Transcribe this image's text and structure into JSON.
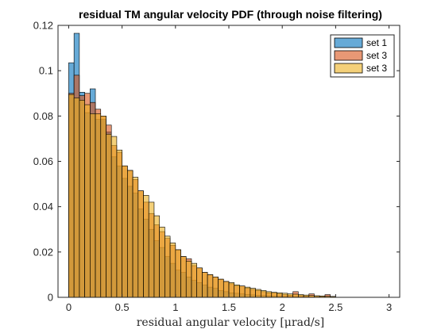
{
  "chart_data": {
    "type": "bar",
    "title": "residual TM angular velocity PDF (through noise filtering)",
    "xlabel": "residual angular velocity [μrad/s]",
    "ylabel": "",
    "xlim": [
      -0.1,
      3.1
    ],
    "ylim": [
      0,
      0.12
    ],
    "xticks": [
      0,
      0.5,
      1,
      1.5,
      2,
      2.5,
      3
    ],
    "xtick_labels": [
      "0",
      "0.5",
      "1",
      "1.5",
      "2",
      "2.5",
      "3"
    ],
    "yticks": [
      0,
      0.02,
      0.04,
      0.06,
      0.08,
      0.1,
      0.12
    ],
    "ytick_labels": [
      "0",
      "0.02",
      "0.04",
      "0.06",
      "0.08",
      "0.1",
      "0.12"
    ],
    "bin_start": 0,
    "bin_width": 0.05,
    "grid": false,
    "legend_position": "top-right",
    "series": [
      {
        "name": "set 1",
        "color": "#0072bd",
        "values": [
          0.1035,
          0.1165,
          0.0905,
          0.0815,
          0.092,
          0.0785,
          0.0785,
          0.073,
          0.062,
          0.058,
          0.0525,
          0.049,
          0.046,
          0.039,
          0.0345,
          0.03,
          0.025,
          0.022,
          0.018,
          0.015,
          0.012,
          0.011,
          0.009,
          0.0075,
          0.0065,
          0.0055,
          0.0045,
          0.004,
          0.003,
          0.0025,
          0.002,
          0.0018,
          0.0015,
          0.0013,
          0.0011,
          0.0009,
          0.0008,
          0.0007,
          0.0006,
          0.0005,
          0.0004,
          0.0004,
          0.0003,
          0.0003,
          0.0002,
          0.0002,
          0.0001,
          0.0001,
          0.0001,
          0.0001
        ]
      },
      {
        "name": "set 3",
        "color": "#d95319",
        "values": [
          0.09,
          0.098,
          0.089,
          0.09,
          0.086,
          0.083,
          0.08,
          0.076,
          0.067,
          0.064,
          0.058,
          0.056,
          0.052,
          0.047,
          0.042,
          0.037,
          0.032,
          0.029,
          0.026,
          0.023,
          0.021,
          0.018,
          0.017,
          0.014,
          0.013,
          0.011,
          0.01,
          0.009,
          0.008,
          0.007,
          0.006,
          0.005,
          0.005,
          0.004,
          0.0035,
          0.003,
          0.0025,
          0.002,
          0.002,
          0.0015,
          0.0012,
          0.001,
          0.0025,
          0.0008,
          0.0006,
          0.0015,
          0.0004,
          0.0004,
          0.0012,
          0.0003
        ]
      },
      {
        "name": "set 3",
        "color": "#edb120",
        "values": [
          0.0895,
          0.088,
          0.087,
          0.085,
          0.081,
          0.081,
          0.08,
          0.072,
          0.071,
          0.065,
          0.058,
          0.056,
          0.053,
          0.047,
          0.045,
          0.042,
          0.036,
          0.031,
          0.027,
          0.024,
          0.021,
          0.018,
          0.016,
          0.015,
          0.013,
          0.011,
          0.01,
          0.009,
          0.008,
          0.007,
          0.0065,
          0.0055,
          0.005,
          0.0045,
          0.004,
          0.0035,
          0.003,
          0.0025,
          0.0022,
          0.002,
          0.0018,
          0.0015,
          0.0014,
          0.0012,
          0.001,
          0.0008,
          0.0007,
          0.0006,
          0.0005,
          0.0004
        ]
      }
    ]
  }
}
